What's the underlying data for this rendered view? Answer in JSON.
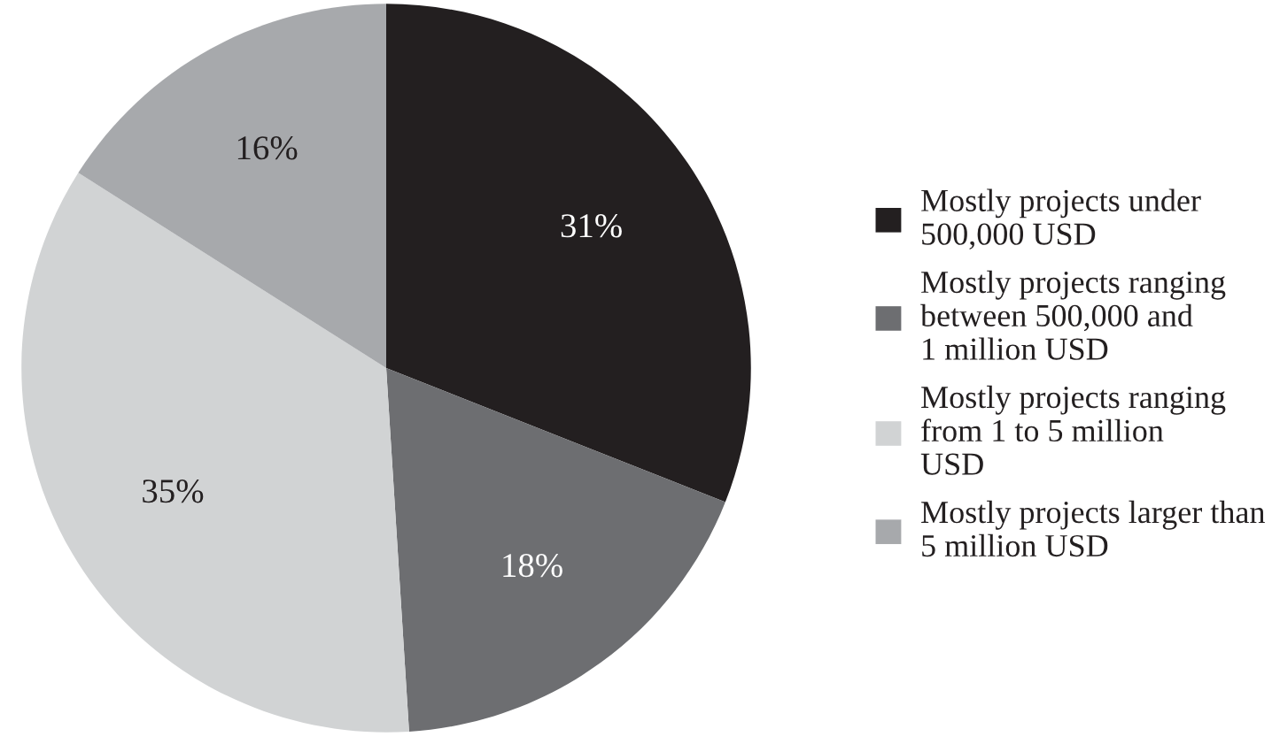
{
  "chart_data": {
    "type": "pie",
    "categories": [
      "Mostly projects under\n500,000 USD",
      "Mostly projects ranging\nbetween 500,000 and\n1 million USD",
      "Mostly projects ranging\nfrom 1 to 5 million\nUSD",
      "Mostly projects larger than\n5 million USD"
    ],
    "values": [
      31,
      18,
      35,
      16
    ],
    "colors": [
      "#231f20",
      "#6d6e71",
      "#d1d3d4",
      "#a7a9ac"
    ],
    "value_labels": [
      "31%",
      "18%",
      "35%",
      "16%"
    ],
    "legend": "right"
  }
}
